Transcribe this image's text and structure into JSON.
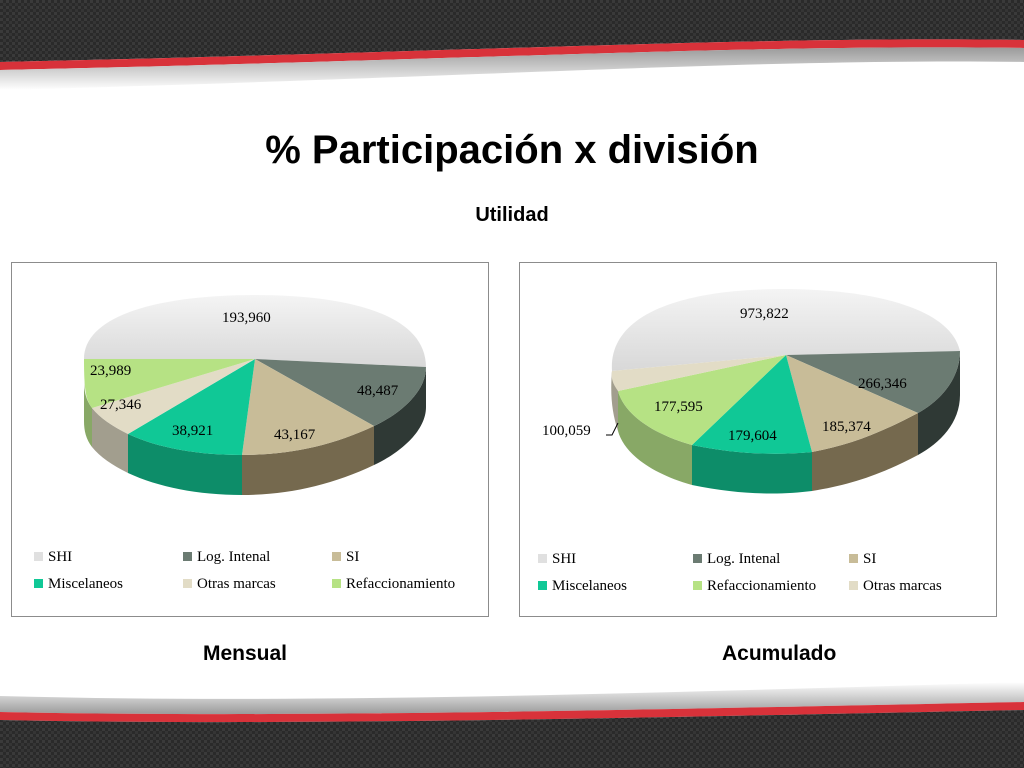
{
  "title": "% Participación x división",
  "subtitle": "Utilidad",
  "colors": {
    "shi": "#e0e0e0",
    "log_intenal": "#6b7b72",
    "si": "#c8bc98",
    "miscelaneos": "#10c896",
    "otras_marcas": "#e2dcc6",
    "refaccionamiento": "#b6e284",
    "band_dark": "#2f2f2f",
    "band_red": "#d8323a"
  },
  "chart_data": [
    {
      "type": "pie",
      "caption": "Mensual",
      "categories": [
        "SHI",
        "Log. Intenal",
        "SI",
        "Miscelaneos",
        "Otras marcas",
        "Refaccionamiento"
      ],
      "values": [
        193960,
        48487,
        43167,
        38921,
        27346,
        23989
      ],
      "data_labels": [
        "193,960",
        "48,487",
        "43,167",
        "38,921",
        "27,346",
        "23,989"
      ],
      "legend": [
        "SHI",
        "Log. Intenal",
        "SI",
        "Miscelaneos",
        "Otras marcas",
        "Refaccionamiento"
      ],
      "legend_placement": "bottom"
    },
    {
      "type": "pie",
      "caption": "Acumulado",
      "categories": [
        "SHI",
        "Log. Intenal",
        "SI",
        "Miscelaneos",
        "Refaccionamiento",
        "Otras marcas"
      ],
      "values": [
        973822,
        266346,
        185374,
        179604,
        177595,
        100059
      ],
      "data_labels": [
        "973,822",
        "266,346",
        "185,374",
        "179,604",
        "177,595",
        "100,059"
      ],
      "legend": [
        "SHI",
        "Log. Intenal",
        "SI",
        "Miscelaneos",
        "Refaccionamiento",
        "Otras marcas"
      ],
      "legend_placement": "bottom"
    }
  ]
}
